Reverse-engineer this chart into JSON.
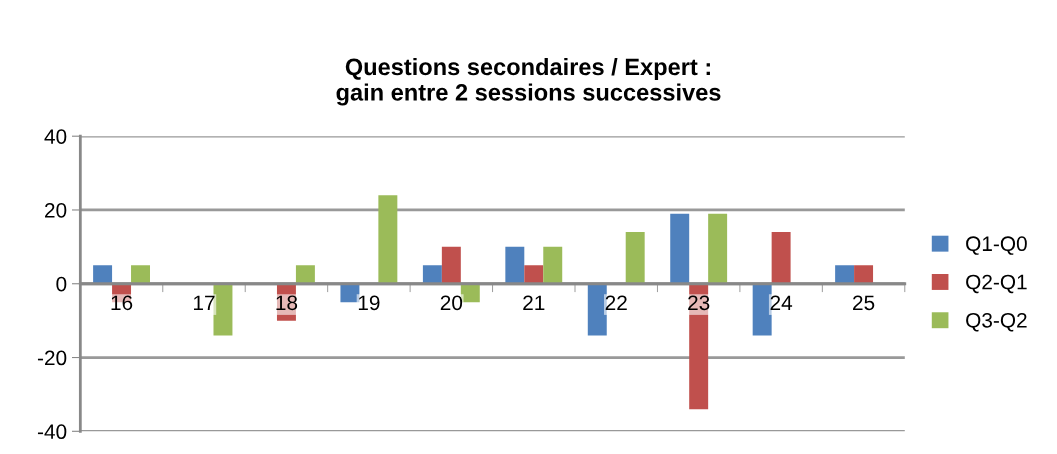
{
  "chart_data": {
    "type": "bar",
    "title": "Questions secondaires / Expert :\ngain entre 2 sessions successives",
    "categories": [
      "16",
      "17",
      "18",
      "19",
      "20",
      "21",
      "22",
      "23",
      "24",
      "25"
    ],
    "series": [
      {
        "name": "Q1-Q0",
        "color": "#4f81bd",
        "values": [
          5,
          0,
          0,
          -5,
          5,
          10,
          -14,
          19,
          -14,
          5
        ]
      },
      {
        "name": "Q2-Q1",
        "color": "#c0504d",
        "values": [
          -5,
          0,
          -10,
          0,
          10,
          5,
          0,
          -34,
          14,
          5
        ]
      },
      {
        "name": "Q3-Q2",
        "color": "#9bbb59",
        "values": [
          5,
          -14,
          5,
          24,
          -5,
          10,
          14,
          19,
          0,
          0
        ]
      }
    ],
    "ylim": [
      -40,
      40
    ],
    "yticks": [
      -40,
      -20,
      0,
      20,
      40
    ],
    "grid": "y",
    "legend": "right"
  }
}
